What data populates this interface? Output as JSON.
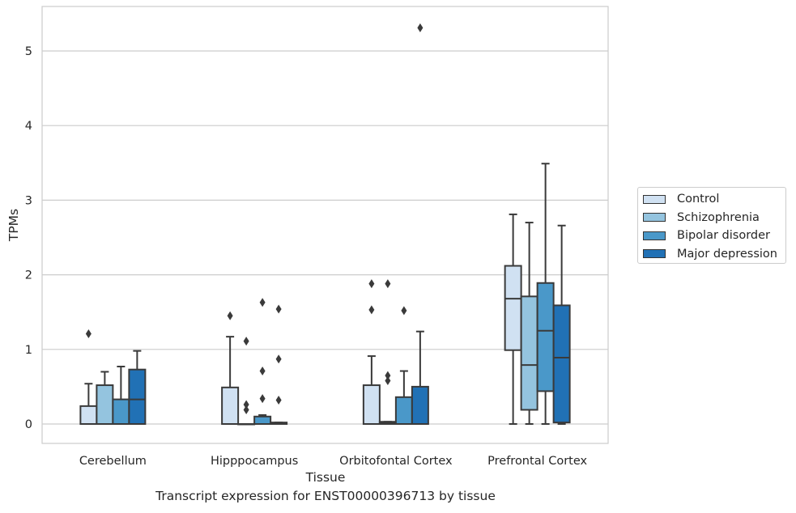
{
  "chart_data": {
    "type": "box",
    "xlabel": "Tissue",
    "ylabel": "TPMs",
    "caption": "Transcript expression for ENST00000396713 by tissue",
    "ylim": [
      -0.25,
      5.6
    ],
    "yticks": [
      0,
      1,
      2,
      3,
      4,
      5
    ],
    "grid": "horizontal",
    "legend_position": "right",
    "categories": [
      "Cerebellum",
      "Hipppocampus",
      "Orbitofontal Cortex",
      "Prefrontal Cortex"
    ],
    "series": [
      {
        "name": "Control",
        "color": "#d0e1f2",
        "boxes": [
          {
            "whislo": 0,
            "q1": 0,
            "med": 0,
            "q3": 0.24,
            "whishi": 0.54,
            "fliers": [
              1.21
            ]
          },
          {
            "whislo": 0,
            "q1": 0,
            "med": 0,
            "q3": 0.49,
            "whishi": 1.17,
            "fliers": [
              1.45
            ]
          },
          {
            "whislo": 0,
            "q1": 0,
            "med": 0,
            "q3": 0.52,
            "whishi": 0.91,
            "fliers": [
              1.53,
              1.88
            ]
          },
          {
            "whislo": 0,
            "q1": 0.99,
            "med": 1.68,
            "q3": 2.12,
            "whishi": 2.81,
            "fliers": []
          }
        ]
      },
      {
        "name": "Schizophrenia",
        "color": "#94c4df",
        "boxes": [
          {
            "whislo": 0,
            "q1": 0,
            "med": 0,
            "q3": 0.52,
            "whishi": 0.7,
            "fliers": []
          },
          {
            "whislo": 0,
            "q1": 0,
            "med": 0,
            "q3": 0,
            "whishi": 0,
            "fliers": [
              0.19,
              0.26,
              1.11
            ]
          },
          {
            "whislo": 0,
            "q1": 0,
            "med": 0.02,
            "q3": 0.03,
            "whishi": 0.03,
            "fliers": [
              0.58,
              0.65,
              1.88
            ]
          },
          {
            "whislo": 0,
            "q1": 0.19,
            "med": 0.79,
            "q3": 1.71,
            "whishi": 2.7,
            "fliers": []
          }
        ]
      },
      {
        "name": "Bipolar disorder",
        "color": "#4a98c9",
        "boxes": [
          {
            "whislo": 0,
            "q1": 0,
            "med": 0,
            "q3": 0.33,
            "whishi": 0.77,
            "fliers": []
          },
          {
            "whislo": 0,
            "q1": 0,
            "med": 0,
            "q3": 0.1,
            "whishi": 0.12,
            "fliers": [
              0.34,
              0.71,
              1.63
            ]
          },
          {
            "whislo": 0,
            "q1": 0,
            "med": 0,
            "q3": 0.36,
            "whishi": 0.71,
            "fliers": [
              1.52
            ]
          },
          {
            "whislo": 0,
            "q1": 0.44,
            "med": 1.25,
            "q3": 1.89,
            "whishi": 3.49,
            "fliers": []
          }
        ]
      },
      {
        "name": "Major depression",
        "color": "#2171b5",
        "boxes": [
          {
            "whislo": 0,
            "q1": 0,
            "med": 0.33,
            "q3": 0.73,
            "whishi": 0.98,
            "fliers": []
          },
          {
            "whislo": 0,
            "q1": 0,
            "med": 0,
            "q3": 0.02,
            "whishi": 0.02,
            "fliers": [
              0.32,
              0.87,
              1.54
            ]
          },
          {
            "whislo": 0,
            "q1": 0,
            "med": 0,
            "q3": 0.5,
            "whishi": 1.24,
            "fliers": [
              5.31
            ]
          },
          {
            "whislo": 0,
            "q1": 0.02,
            "med": 0.89,
            "q3": 1.59,
            "whishi": 2.66,
            "fliers": []
          }
        ]
      }
    ]
  }
}
